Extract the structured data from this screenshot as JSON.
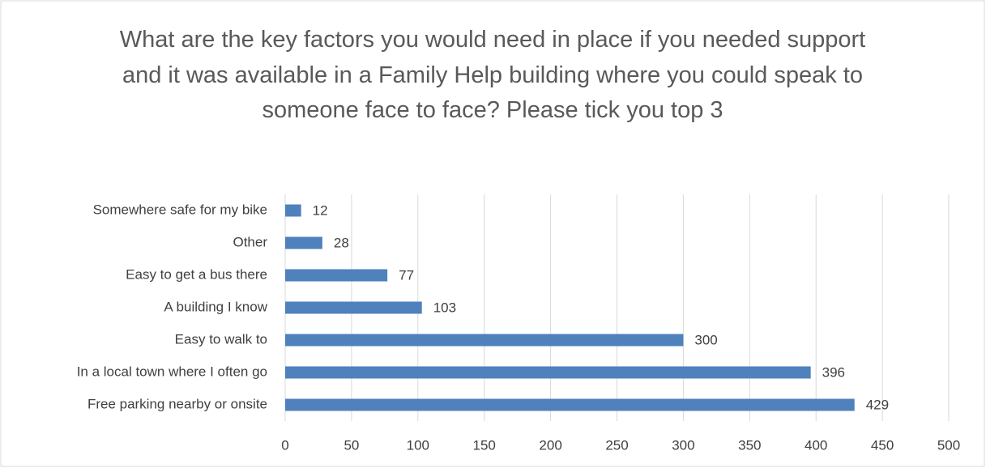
{
  "chart_data": {
    "type": "bar",
    "orientation": "horizontal",
    "title": "What are the key factors you would need in place if you needed support and it was available in a Family Help building where you could speak to someone face to face?  Please tick you top 3",
    "categories": [
      "Somewhere safe for my bike",
      "Other",
      "Easy to get a bus there",
      "A building I know",
      "Easy to walk to",
      "In a local town where I often go",
      "Free parking nearby or onsite"
    ],
    "values": [
      12,
      28,
      77,
      103,
      300,
      396,
      429
    ],
    "color": "#4f81bd",
    "xlim": [
      0,
      500
    ],
    "xticks": [
      0,
      50,
      100,
      150,
      200,
      250,
      300,
      350,
      400,
      450,
      500
    ],
    "grid": true
  }
}
